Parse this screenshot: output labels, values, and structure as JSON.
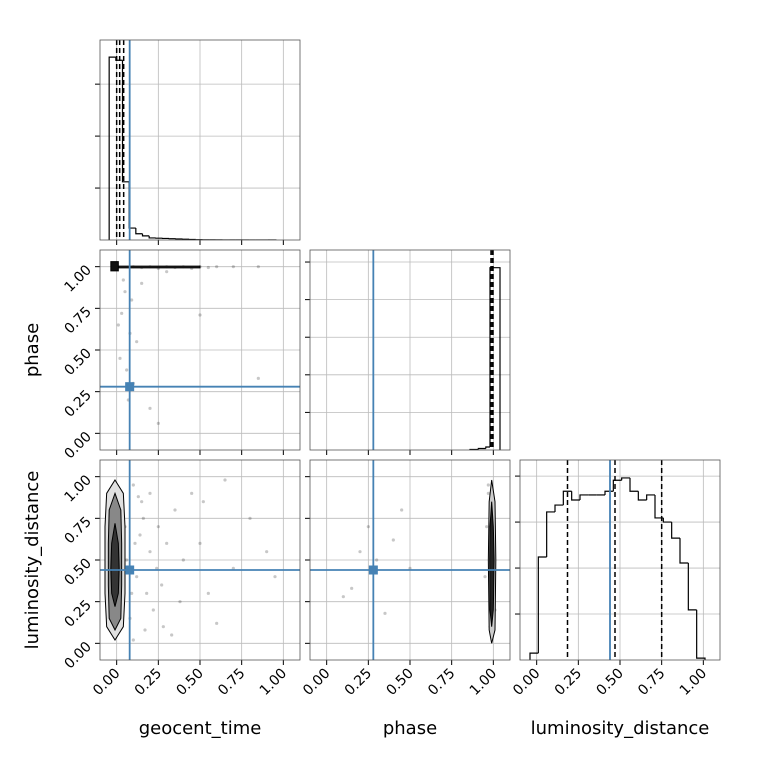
{
  "chart_data": {
    "type": "corner",
    "parameters": [
      "geocent_time",
      "phase",
      "luminosity_distance"
    ],
    "truths": [
      0.078,
      0.28,
      0.44
    ],
    "truth_color": "#4682b4",
    "xlim": [
      -0.1,
      1.1
    ],
    "ylim": [
      -0.1,
      1.1
    ],
    "ticks": [
      {
        "value": 0,
        "label": "0.00"
      },
      {
        "value": 0.25,
        "label": "0.25"
      },
      {
        "value": 0.5,
        "label": "0.50"
      },
      {
        "value": 0.75,
        "label": "0.75"
      },
      {
        "value": 1,
        "label": "1.00"
      }
    ],
    "grid": true,
    "histograms": [
      {
        "bins": [
          -0.045,
          -0.005,
          0.035,
          0.075,
          0.115,
          0.155,
          0.195,
          0.235,
          0.275,
          0.315,
          0.355,
          0.395,
          0.435,
          0.475,
          0.515,
          0.555,
          0.595,
          0.635,
          0.675,
          0.715,
          0.755,
          0.795,
          0.835,
          0.875,
          0.915,
          0.955
        ],
        "counts": [
          3520,
          3460,
          1120,
          230,
          120,
          80,
          40,
          35,
          30,
          25,
          20,
          15,
          10,
          5,
          3,
          2,
          2,
          1,
          1,
          1,
          0,
          0,
          0,
          0,
          1
        ],
        "ylim": [
          0,
          3850
        ],
        "yticks": [
          1000,
          2000,
          3000
        ],
        "quantiles": [
          0.0,
          0.018,
          0.042
        ]
      },
      {
        "bins": [
          0.86,
          0.91,
          0.955,
          0.98,
          1.04
        ],
        "counts": [
          15,
          40,
          80,
          4850
        ],
        "ylim": [
          0,
          5320
        ],
        "yticks": [
          1000,
          2000,
          3000,
          4000,
          5000
        ],
        "quantiles": [
          0.986,
          0.994,
          0.998
        ]
      },
      {
        "bins": [
          -0.04,
          0.01,
          0.06,
          0.11,
          0.16,
          0.21,
          0.26,
          0.31,
          0.36,
          0.41,
          0.46,
          0.51,
          0.56,
          0.61,
          0.66,
          0.71,
          0.76,
          0.81,
          0.86,
          0.91,
          0.96,
          1.01
        ],
        "counts": [
          15,
          224,
          322,
          337,
          367,
          348,
          359,
          359,
          359,
          367,
          391,
          396,
          367,
          348,
          359,
          309,
          300,
          265,
          211,
          109,
          4
        ],
        "ylim": [
          0,
          435
        ],
        "yticks": [
          100,
          200,
          300,
          400
        ],
        "quantiles": [
          0.185,
          0.47,
          0.75
        ]
      }
    ],
    "pairs": [
      {
        "points": {
          "x": [
            0.1,
            0.15,
            0.2,
            0.25,
            0.3,
            0.35,
            0.4,
            0.45,
            0.5,
            0.55,
            0.6,
            0.7,
            0.85,
            0.05,
            0.03,
            0.08,
            0.12,
            0.02,
            0.06,
            0.1,
            0.5,
            0.2,
            0.25,
            0.85,
            0.04,
            0.09,
            0.3,
            0.15,
            0.07,
            0.01
          ],
          "y": [
            1.0,
            0.995,
            1.0,
            0.99,
            1.0,
            0.995,
            1.0,
            0.99,
            1.0,
            0.995,
            1.0,
            1.0,
            1.0,
            0.85,
            0.72,
            0.6,
            0.55,
            0.45,
            0.38,
            0.3,
            0.71,
            0.15,
            0.06,
            0.33,
            0.92,
            0.8,
            0.97,
            0.9,
            0.2,
            0.65
          ]
        },
        "contours": [
          {
            "x": [
              0.01,
              0.5,
              0.5,
              0.01
            ],
            "y": [
              1.003,
              1.003,
              0.993,
              0.993
            ],
            "color": "#333333"
          },
          {
            "x": [
              -0.035,
              0.01,
              0.01,
              -0.035
            ],
            "y": [
              1.03,
              1.03,
              0.975,
              0.975
            ],
            "color": "#111111"
          }
        ]
      },
      {
        "points": {
          "x": [
            0.1,
            0.15,
            0.2,
            0.25,
            0.3,
            0.35,
            0.4,
            0.12,
            0.18,
            0.22,
            0.28,
            0.33,
            0.14,
            0.16,
            0.24,
            0.08,
            0.1,
            0.2,
            0.45,
            0.5,
            0.55,
            0.6,
            0.65,
            0.7,
            0.8,
            0.9,
            0.95,
            0.52,
            0.38,
            0.27,
            0.06,
            0.09,
            0.13,
            0.17,
            0.05,
            0.11
          ],
          "y": [
            0.95,
            0.85,
            0.9,
            0.7,
            0.6,
            0.8,
            0.5,
            0.4,
            0.3,
            0.2,
            0.1,
            0.05,
            0.65,
            0.75,
            0.45,
            0.15,
            0.02,
            0.55,
            0.9,
            0.6,
            0.3,
            0.12,
            0.98,
            0.45,
            0.75,
            0.55,
            0.4,
            0.85,
            0.25,
            0.35,
            0.5,
            0.3,
            0.88,
            0.08,
            0.7,
            0.6
          ]
        },
        "contours": [
          {
            "x": [
              -0.01,
              0.04,
              0.05,
              0.05,
              0.04,
              -0.01,
              -0.06,
              -0.07,
              -0.07,
              -0.06
            ],
            "y": [
              0.98,
              0.9,
              0.7,
              0.3,
              0.1,
              0.02,
              0.1,
              0.3,
              0.7,
              0.9
            ],
            "color": "#e0e0e0"
          },
          {
            "x": [
              -0.01,
              0.025,
              0.03,
              0.03,
              0.025,
              -0.01,
              -0.045,
              -0.05,
              -0.05,
              -0.045
            ],
            "y": [
              0.9,
              0.8,
              0.6,
              0.35,
              0.15,
              0.08,
              0.15,
              0.35,
              0.6,
              0.8
            ],
            "color": "#888888"
          },
          {
            "x": [
              -0.01,
              0.01,
              0.015,
              0.01,
              -0.01,
              -0.03,
              -0.035,
              -0.03
            ],
            "y": [
              0.72,
              0.6,
              0.45,
              0.3,
              0.22,
              0.3,
              0.45,
              0.6
            ],
            "color": "#333333"
          }
        ]
      },
      {
        "points": {
          "x": [
            0.97,
            0.98,
            0.99,
            1.0,
            0.96,
            0.98,
            1.01,
            0.99,
            0.2,
            0.3,
            0.15,
            0.4,
            0.5,
            0.1,
            0.25,
            0.35,
            0.45,
            0.95,
            0.97,
            0.99
          ],
          "y": [
            0.9,
            0.1,
            0.5,
            0.3,
            0.7,
            0.6,
            0.2,
            0.85,
            0.55,
            0.5,
            0.33,
            0.62,
            0.45,
            0.28,
            0.7,
            0.18,
            0.8,
            0.4,
            0.95,
            0.05
          ]
        },
        "contours": [
          {
            "x": [
              0.99,
              1.01,
              1.015,
              1.01,
              0.99,
              0.975,
              0.97,
              0.975
            ],
            "y": [
              0.98,
              0.85,
              0.5,
              0.08,
              0.0,
              0.08,
              0.5,
              0.85
            ],
            "color": "#cccccc"
          },
          {
            "x": [
              0.99,
              1.0,
              1.005,
              1.0,
              0.99,
              0.98,
              0.978,
              0.98
            ],
            "y": [
              0.85,
              0.7,
              0.5,
              0.2,
              0.1,
              0.2,
              0.5,
              0.7
            ],
            "color": "#222222"
          }
        ]
      }
    ]
  }
}
